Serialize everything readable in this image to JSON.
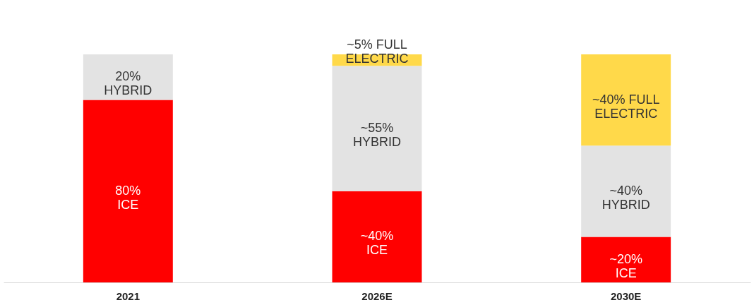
{
  "chart_data": {
    "type": "bar",
    "stacked": true,
    "categories": [
      "2021",
      "2026E",
      "2030E"
    ],
    "series": [
      {
        "color": "#ff0000",
        "values": [
          80,
          40,
          20
        ],
        "value_labels": [
          "80%\nICE",
          "~40%\nICE",
          "~20%\nICE"
        ]
      },
      {
        "color": "#e3e3e3",
        "values": [
          20,
          55,
          40
        ],
        "value_labels": [
          "20%\nHYBRID",
          "~55%\nHYBRID",
          "~40%\nHYBRID"
        ]
      },
      {
        "color": "#ffd94a",
        "values": [
          null,
          5,
          40
        ],
        "value_labels": [
          null,
          "~5% FULL\nELECTRIC",
          "~40% FULL\nELECTRIC"
        ]
      }
    ]
  }
}
